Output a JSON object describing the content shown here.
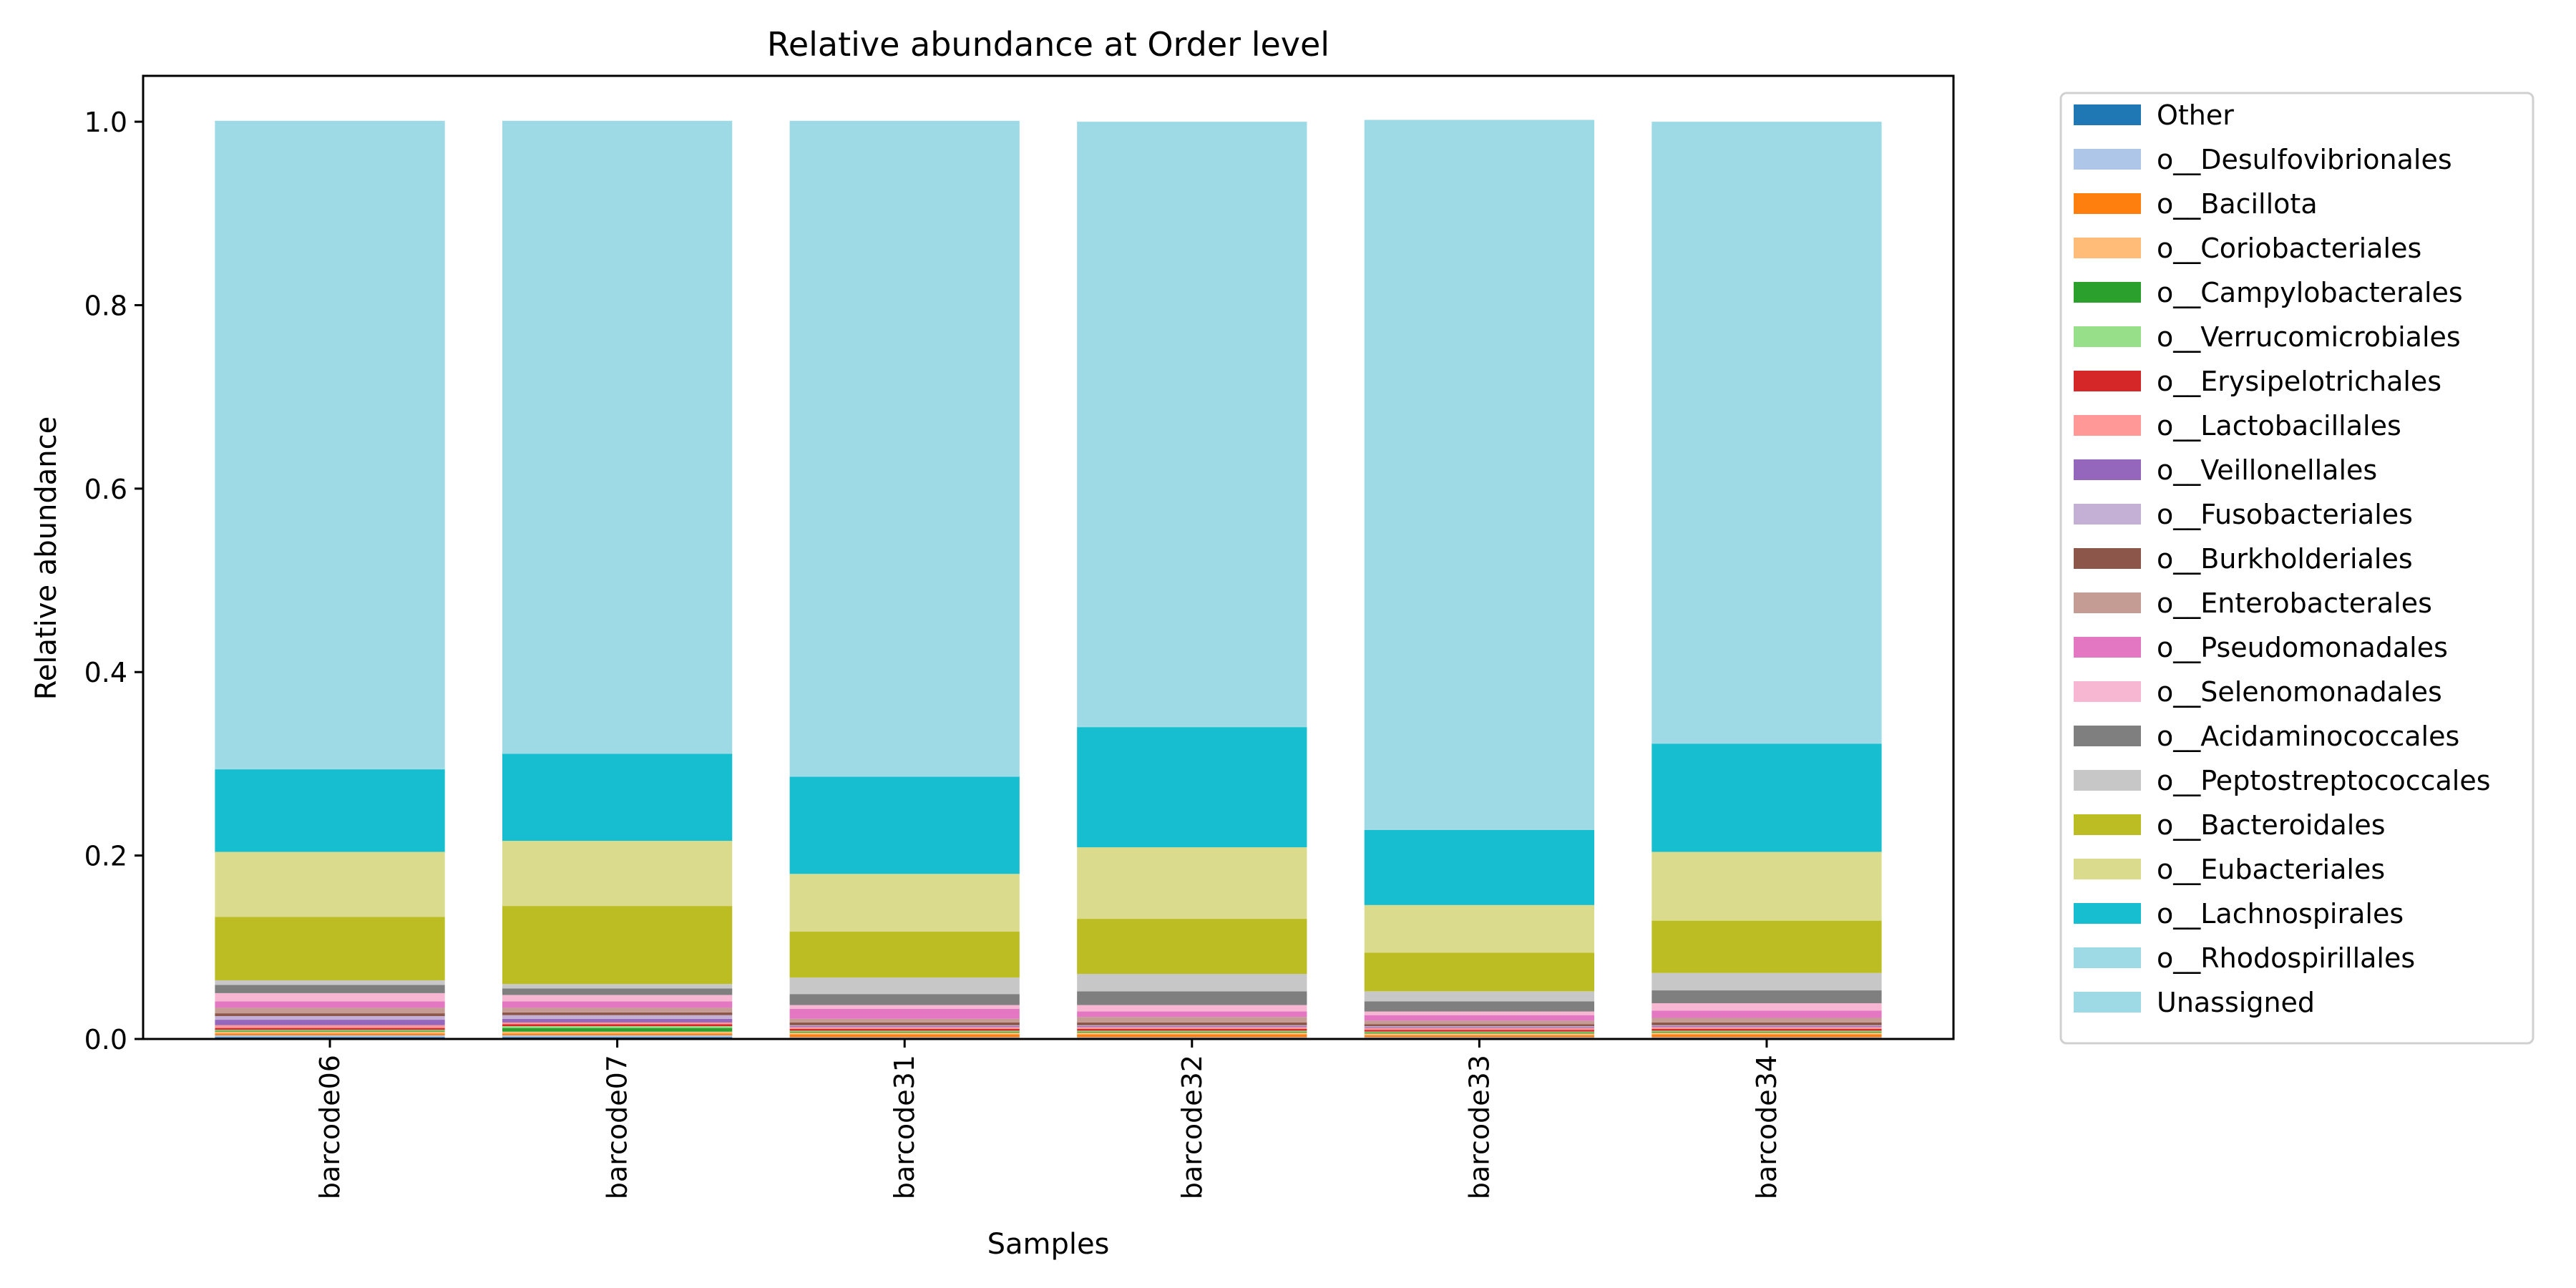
{
  "chart_data": {
    "type": "bar",
    "stacked": true,
    "title": "Relative abundance at Order level",
    "xlabel": "Samples",
    "ylabel": "Relative abundance",
    "ylim": [
      0,
      1.05
    ],
    "yticks": [
      "0.0",
      "0.2",
      "0.4",
      "0.6",
      "0.8",
      "1.0"
    ],
    "grid": false,
    "legend_position": "outside-right",
    "categories": [
      "barcode06",
      "barcode07",
      "barcode31",
      "barcode32",
      "barcode33",
      "barcode34"
    ],
    "series": [
      {
        "name": "Other",
        "color": "#1f77b4",
        "values": [
          0.002,
          0.002,
          0.001,
          0.001,
          0.001,
          0.001
        ]
      },
      {
        "name": "o__Desulfovibrionales",
        "color": "#aec7e8",
        "values": [
          0.002,
          0.002,
          0.001,
          0.001,
          0.001,
          0.001
        ]
      },
      {
        "name": "o__Bacillota",
        "color": "#ff7f0e",
        "values": [
          0.002,
          0.002,
          0.003,
          0.003,
          0.002,
          0.003
        ]
      },
      {
        "name": "o__Coriobacteriales",
        "color": "#ffbb78",
        "values": [
          0.002,
          0.002,
          0.002,
          0.002,
          0.002,
          0.002
        ]
      },
      {
        "name": "o__Campylobacterales",
        "color": "#2ca02c",
        "values": [
          0.001,
          0.004,
          0.001,
          0.001,
          0.001,
          0.001
        ]
      },
      {
        "name": "o__Verrucomicrobiales",
        "color": "#98df8a",
        "values": [
          0.001,
          0.002,
          0.001,
          0.001,
          0.001,
          0.001
        ]
      },
      {
        "name": "o__Erysipelotrichales",
        "color": "#d62728",
        "values": [
          0.002,
          0.002,
          0.002,
          0.002,
          0.002,
          0.002
        ]
      },
      {
        "name": "o__Lactobacillales",
        "color": "#ff9896",
        "values": [
          0.003,
          0.002,
          0.002,
          0.002,
          0.002,
          0.002
        ]
      },
      {
        "name": "o__Veillonellales",
        "color": "#9467bd",
        "values": [
          0.006,
          0.004,
          0.001,
          0.001,
          0.001,
          0.001
        ]
      },
      {
        "name": "o__Fusobacteriales",
        "color": "#c5b0d5",
        "values": [
          0.004,
          0.004,
          0.001,
          0.001,
          0.001,
          0.001
        ]
      },
      {
        "name": "o__Burkholderiales",
        "color": "#8c564b",
        "values": [
          0.003,
          0.003,
          0.003,
          0.003,
          0.002,
          0.003
        ]
      },
      {
        "name": "o__Enterobacterales",
        "color": "#c49c94",
        "values": [
          0.006,
          0.005,
          0.004,
          0.006,
          0.004,
          0.005
        ]
      },
      {
        "name": "o__Pseudomonadales",
        "color": "#e377c2",
        "values": [
          0.007,
          0.007,
          0.011,
          0.006,
          0.006,
          0.008
        ]
      },
      {
        "name": "o__Selenomonadales",
        "color": "#f7b6d2",
        "values": [
          0.009,
          0.007,
          0.004,
          0.007,
          0.004,
          0.008
        ]
      },
      {
        "name": "o__Acidaminococcales",
        "color": "#7f7f7f",
        "values": [
          0.009,
          0.007,
          0.012,
          0.015,
          0.011,
          0.014
        ]
      },
      {
        "name": "o__Peptostreptococcales",
        "color": "#c7c7c7",
        "values": [
          0.005,
          0.005,
          0.018,
          0.019,
          0.011,
          0.019
        ]
      },
      {
        "name": "o__Bacteroidales",
        "color": "#bcbd22",
        "values": [
          0.069,
          0.085,
          0.05,
          0.06,
          0.042,
          0.057
        ]
      },
      {
        "name": "o__Eubacteriales",
        "color": "#dbdb8d",
        "values": [
          0.071,
          0.071,
          0.063,
          0.078,
          0.052,
          0.075
        ]
      },
      {
        "name": "o__Lachnospirales",
        "color": "#17becf",
        "values": [
          0.09,
          0.095,
          0.106,
          0.131,
          0.082,
          0.118
        ]
      },
      {
        "name": "o__Rhodospirillales",
        "color": "#9edae5",
        "values": [
          0.001,
          0.001,
          0.001,
          0.001,
          0.001,
          0.001
        ]
      },
      {
        "name": "Unassigned",
        "color": "#9edae5",
        "values": [
          0.706,
          0.689,
          0.714,
          0.659,
          0.773,
          0.677
        ]
      }
    ]
  }
}
